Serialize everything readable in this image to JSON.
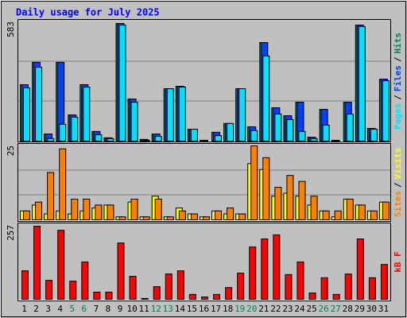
{
  "chart_data": [
    {
      "type": "bar",
      "title": "Daily usage for July 2025",
      "ylim": [
        0,
        583
      ],
      "yticks": [
        583
      ],
      "legend_separator": "/",
      "series": [
        {
          "name": "Hits",
          "color": "#00805c",
          "values": [
            276,
            385,
            35,
            385,
            128,
            276,
            47,
            16,
            575,
            206,
            8,
            35,
            256,
            268,
            58,
            4,
            43,
            86,
            256,
            70,
            482,
            163,
            124,
            190,
            19,
            155,
            4,
            190,
            567,
            62,
            303
          ]
        },
        {
          "name": "Files",
          "color": "#0040ff",
          "values": [
            276,
            385,
            35,
            385,
            128,
            276,
            47,
            16,
            575,
            206,
            8,
            35,
            256,
            268,
            58,
            4,
            43,
            86,
            256,
            70,
            482,
            163,
            124,
            190,
            19,
            155,
            4,
            190,
            567,
            62,
            303
          ]
        },
        {
          "name": "Pages",
          "color": "#00e0ff",
          "values": [
            260,
            361,
            12,
            82,
            117,
            264,
            31,
            12,
            567,
            190,
            4,
            23,
            256,
            264,
            58,
            0,
            27,
            86,
            256,
            51,
            416,
            132,
            105,
            47,
            12,
            78,
            0,
            132,
            560,
            58,
            295
          ]
        }
      ]
    },
    {
      "type": "bar",
      "ylim": [
        0,
        25
      ],
      "yticks": [
        25
      ],
      "legend_separator": "/",
      "series": [
        {
          "name": "Visits",
          "color": "#ffff00",
          "values": [
            3,
            5,
            2,
            3,
            2,
            3,
            4,
            5,
            1,
            6,
            1,
            8,
            1,
            4,
            2,
            1,
            3,
            2,
            2,
            19,
            17,
            8,
            9,
            8,
            5,
            3,
            1,
            7,
            5,
            3,
            6
          ]
        },
        {
          "name": "Sites",
          "color": "#ff8000",
          "values": [
            3,
            6,
            16,
            24,
            7,
            7,
            5,
            5,
            1,
            7,
            1,
            7,
            1,
            3,
            2,
            1,
            3,
            4,
            2,
            25,
            21,
            11,
            15,
            13,
            8,
            3,
            3,
            7,
            5,
            3,
            6
          ]
        }
      ]
    },
    {
      "type": "bar",
      "ylim": [
        0,
        257
      ],
      "yticks": [
        257
      ],
      "categories": [
        "1",
        "2",
        "3",
        "4",
        "5",
        "6",
        "7",
        "8",
        "9",
        "10",
        "11",
        "12",
        "13",
        "14",
        "15",
        "16",
        "17",
        "18",
        "19",
        "20",
        "21",
        "22",
        "23",
        "24",
        "25",
        "26",
        "27",
        "28",
        "29",
        "30",
        "31"
      ],
      "category_colors": [
        "#000000",
        "#000000",
        "#000000",
        "#000000",
        "#00805c",
        "#00805c",
        "#000000",
        "#000000",
        "#000000",
        "#000000",
        "#000000",
        "#00805c",
        "#00805c",
        "#000000",
        "#000000",
        "#000000",
        "#000000",
        "#000000",
        "#00805c",
        "#00805c",
        "#000000",
        "#000000",
        "#000000",
        "#000000",
        "#000000",
        "#00805c",
        "#00805c",
        "#000000",
        "#000000",
        "#000000",
        "#000000"
      ],
      "series": [
        {
          "name": "kB F",
          "color": "#ff0000",
          "values": [
            99,
            254,
            66,
            240,
            63,
            130,
            25,
            25,
            196,
            80,
            3,
            44,
            88,
            99,
            17,
            8,
            17,
            41,
            91,
            182,
            210,
            224,
            86,
            130,
            22,
            75,
            17,
            88,
            210,
            75,
            121
          ]
        }
      ]
    }
  ]
}
